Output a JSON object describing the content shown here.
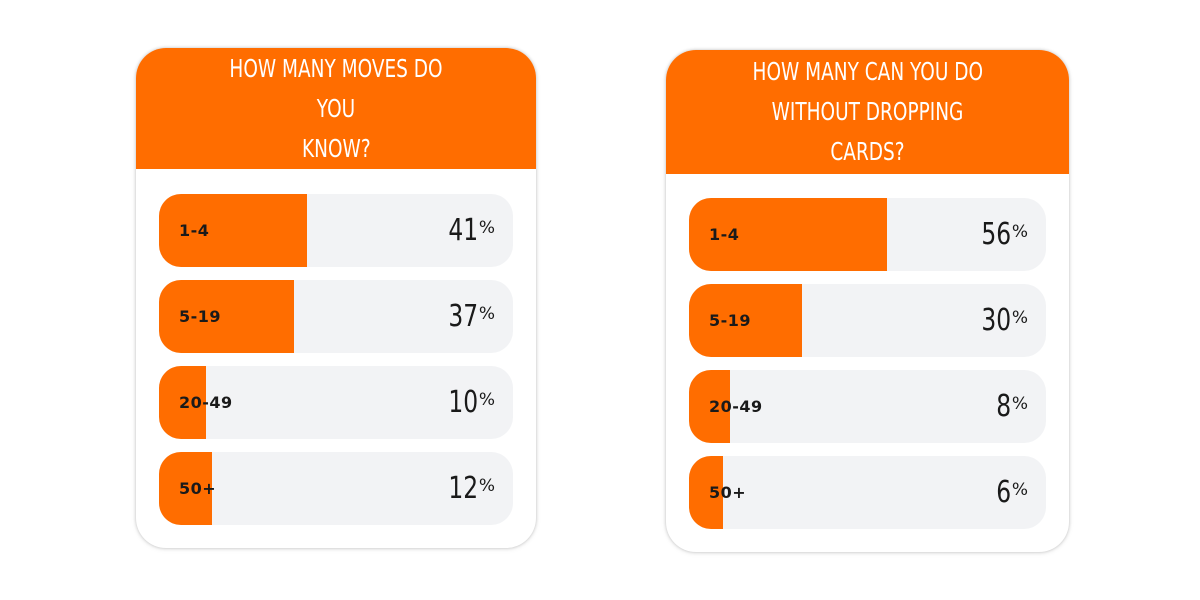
{
  "polls": [
    {
      "question": "HOW MANY MOVES DO YOU KNOW?",
      "question_lines": [
        "HOW MANY MOVES DO YOU",
        "KNOW?"
      ],
      "options": [
        {
          "label": "1-4",
          "percent": 41,
          "percent_text": "41",
          "sign": "%"
        },
        {
          "label": "5-19",
          "percent": 37,
          "percent_text": "37",
          "sign": "%"
        },
        {
          "label": "20-49",
          "percent": 10,
          "percent_text": "10",
          "sign": "%"
        },
        {
          "label": "50+",
          "percent": 12,
          "percent_text": "12",
          "sign": "%"
        }
      ]
    },
    {
      "question": "HOW MANY CAN YOU DO WITHOUT DROPPING CARDS?",
      "question_lines": [
        "HOW MANY CAN YOU DO",
        "WITHOUT DROPPING CARDS?"
      ],
      "options": [
        {
          "label": "1-4",
          "percent": 56,
          "percent_text": "56",
          "sign": "%"
        },
        {
          "label": "5-19",
          "percent": 30,
          "percent_text": "30",
          "sign": "%"
        },
        {
          "label": "20-49",
          "percent": 8,
          "percent_text": "8",
          "sign": "%"
        },
        {
          "label": "50+",
          "percent": 6,
          "percent_text": "6",
          "sign": "%"
        }
      ]
    }
  ],
  "colors": {
    "accent": "#ff6d00",
    "track": "#f2f3f5",
    "text": "#1a1a1a",
    "header_text": "#ffffff"
  }
}
